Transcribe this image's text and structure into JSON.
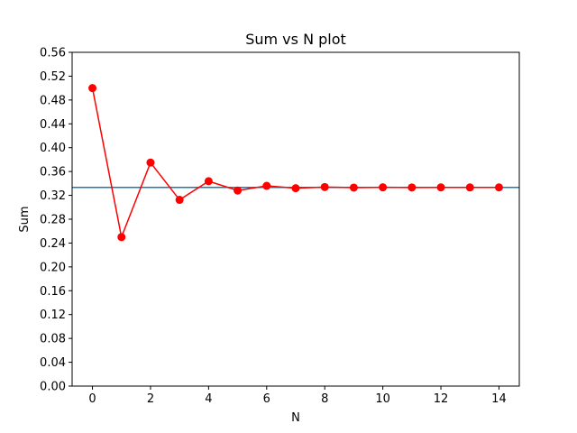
{
  "chart_data": {
    "type": "line",
    "title": "Sum vs N plot",
    "xlabel": "N",
    "ylabel": "Sum",
    "xlim": [
      -0.7,
      14.7
    ],
    "ylim": [
      0.0,
      0.56
    ],
    "xticks": [
      0,
      2,
      4,
      6,
      8,
      10,
      12,
      14
    ],
    "yticks": [
      "0.00",
      "0.04",
      "0.08",
      "0.12",
      "0.16",
      "0.20",
      "0.24",
      "0.28",
      "0.32",
      "0.36",
      "0.40",
      "0.44",
      "0.48",
      "0.52",
      "0.56"
    ],
    "grid": false,
    "series": [
      {
        "color": "#ff0000",
        "marker": "circle",
        "x": [
          0,
          1,
          2,
          3,
          4,
          5,
          6,
          7,
          8,
          9,
          10,
          11,
          12,
          13,
          14
        ],
        "values": [
          0.5,
          0.25,
          0.375,
          0.3125,
          0.34375,
          0.328125,
          0.3359375,
          0.33203125,
          0.333984375,
          0.3330078125,
          0.33349609375,
          0.333251953125,
          0.3333740234375,
          0.33331298828125,
          0.333343505859375
        ]
      }
    ],
    "hlines": [
      {
        "y": 0.3333333,
        "color": "#1f77b4"
      }
    ]
  }
}
